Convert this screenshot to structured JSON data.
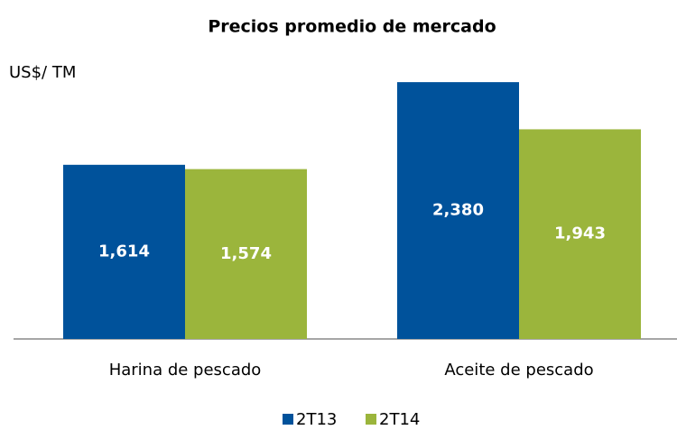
{
  "chart_data": {
    "type": "bar",
    "title": "Precios promedio de mercado",
    "y_label": "US$/ TM",
    "categories": [
      "Harina de pescado",
      "Aceite de pescado"
    ],
    "series": [
      {
        "name": "2T13",
        "color": "#00529b",
        "values": [
          1614,
          2380
        ],
        "value_labels": [
          "1,614",
          "2,380"
        ]
      },
      {
        "name": "2T14",
        "color": "#9bb53c",
        "values": [
          1574,
          1943
        ],
        "value_labels": [
          "1,574",
          "1,943"
        ]
      }
    ],
    "ylim": [
      0,
      2640
    ],
    "legend": "bottom"
  }
}
